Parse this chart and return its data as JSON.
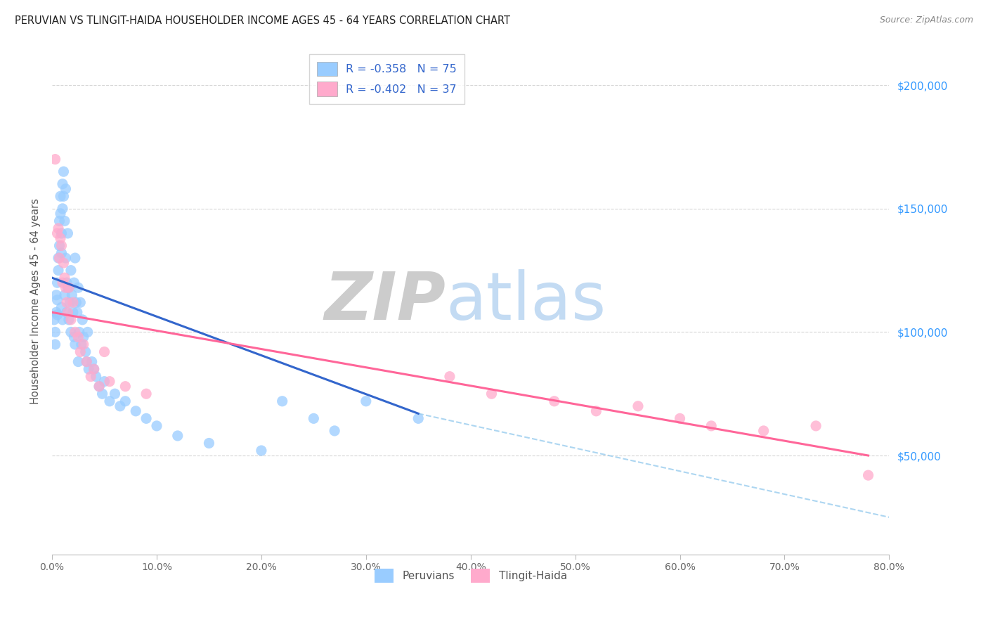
{
  "title": "PERUVIAN VS TLINGIT-HAIDA HOUSEHOLDER INCOME AGES 45 - 64 YEARS CORRELATION CHART",
  "source": "Source: ZipAtlas.com",
  "ylabel": "Householder Income Ages 45 - 64 years",
  "xlabel_ticks": [
    "0.0%",
    "10.0%",
    "20.0%",
    "30.0%",
    "40.0%",
    "50.0%",
    "60.0%",
    "70.0%",
    "80.0%"
  ],
  "ytick_labels": [
    "$50,000",
    "$100,000",
    "$150,000",
    "$200,000"
  ],
  "ytick_values": [
    50000,
    100000,
    150000,
    200000
  ],
  "xlim": [
    0.0,
    0.8
  ],
  "ylim": [
    10000,
    215000
  ],
  "peruvian_color": "#99CCFF",
  "tlingit_color": "#FFAACC",
  "peruvian_R": -0.358,
  "peruvian_N": 75,
  "tlingit_R": -0.402,
  "tlingit_N": 37,
  "legend_R_color": "#3366CC",
  "peruvian_line_color": "#3366CC",
  "tlingit_line_color": "#FF6699",
  "dashed_line_color": "#99CCEE",
  "peruvian_x": [
    0.002,
    0.003,
    0.003,
    0.004,
    0.004,
    0.005,
    0.005,
    0.005,
    0.006,
    0.006,
    0.007,
    0.007,
    0.008,
    0.008,
    0.009,
    0.009,
    0.009,
    0.01,
    0.01,
    0.01,
    0.011,
    0.011,
    0.012,
    0.012,
    0.013,
    0.013,
    0.014,
    0.014,
    0.015,
    0.015,
    0.016,
    0.016,
    0.017,
    0.018,
    0.018,
    0.019,
    0.02,
    0.021,
    0.021,
    0.022,
    0.022,
    0.023,
    0.024,
    0.025,
    0.025,
    0.026,
    0.027,
    0.028,
    0.029,
    0.03,
    0.032,
    0.033,
    0.034,
    0.035,
    0.038,
    0.04,
    0.042,
    0.045,
    0.048,
    0.05,
    0.055,
    0.06,
    0.065,
    0.07,
    0.08,
    0.09,
    0.1,
    0.12,
    0.15,
    0.2,
    0.22,
    0.25,
    0.27,
    0.3,
    0.35
  ],
  "peruvian_y": [
    105000,
    100000,
    95000,
    115000,
    108000,
    120000,
    113000,
    107000,
    130000,
    125000,
    145000,
    135000,
    155000,
    148000,
    140000,
    132000,
    110000,
    160000,
    150000,
    105000,
    165000,
    155000,
    145000,
    115000,
    158000,
    130000,
    120000,
    108000,
    140000,
    118000,
    105000,
    118000,
    112000,
    125000,
    100000,
    115000,
    108000,
    120000,
    98000,
    130000,
    95000,
    112000,
    108000,
    118000,
    88000,
    100000,
    112000,
    95000,
    105000,
    98000,
    92000,
    88000,
    100000,
    85000,
    88000,
    85000,
    82000,
    78000,
    75000,
    80000,
    72000,
    75000,
    70000,
    72000,
    68000,
    65000,
    62000,
    58000,
    55000,
    52000,
    72000,
    65000,
    60000,
    72000,
    65000
  ],
  "tlingit_x": [
    0.003,
    0.005,
    0.006,
    0.007,
    0.008,
    0.009,
    0.01,
    0.011,
    0.012,
    0.013,
    0.014,
    0.015,
    0.016,
    0.018,
    0.02,
    0.022,
    0.025,
    0.027,
    0.03,
    0.033,
    0.037,
    0.04,
    0.045,
    0.05,
    0.055,
    0.07,
    0.09,
    0.38,
    0.42,
    0.48,
    0.52,
    0.56,
    0.6,
    0.63,
    0.68,
    0.73,
    0.78
  ],
  "tlingit_y": [
    170000,
    140000,
    142000,
    130000,
    138000,
    135000,
    120000,
    128000,
    122000,
    118000,
    112000,
    108000,
    118000,
    105000,
    112000,
    100000,
    98000,
    92000,
    95000,
    88000,
    82000,
    85000,
    78000,
    92000,
    80000,
    78000,
    75000,
    82000,
    75000,
    72000,
    68000,
    70000,
    65000,
    62000,
    60000,
    62000,
    42000
  ],
  "peruvian_line_x0": 0.0,
  "peruvian_line_y0": 122000,
  "peruvian_line_x1": 0.35,
  "peruvian_line_y1": 67000,
  "tlingit_line_x0": 0.0,
  "tlingit_line_y0": 108000,
  "tlingit_line_x1": 0.78,
  "tlingit_line_y1": 50000,
  "dashed_line_x0": 0.35,
  "dashed_line_y0": 67000,
  "dashed_line_x1": 0.8,
  "dashed_line_y1": 25000
}
